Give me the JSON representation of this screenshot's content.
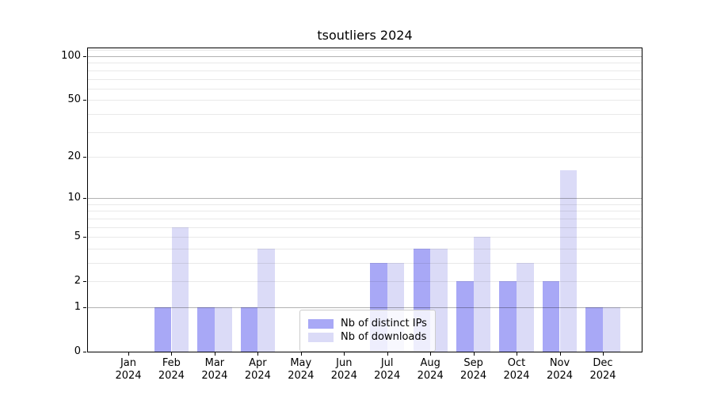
{
  "chart_data": {
    "type": "bar",
    "title": "tsoutliers 2024",
    "categories": [
      "Jan 2024",
      "Feb 2024",
      "Mar 2024",
      "Apr 2024",
      "May 2024",
      "Jun 2024",
      "Jul 2024",
      "Aug 2024",
      "Sep 2024",
      "Oct 2024",
      "Nov 2024",
      "Dec 2024"
    ],
    "series": [
      {
        "name": "Nb of distinct IPs",
        "color": "#a8a8f6",
        "values": [
          0,
          1,
          1,
          1,
          0,
          0,
          3,
          4,
          2,
          2,
          2,
          1
        ]
      },
      {
        "name": "Nb of downloads",
        "color": "#dbdbf7",
        "values": [
          0,
          6,
          1,
          4,
          0,
          0,
          3,
          4,
          5,
          3,
          16,
          1
        ]
      }
    ],
    "xlabel": "",
    "ylabel": "",
    "yscale": "log1p",
    "ylim": [
      0,
      115
    ],
    "yticks": [
      0,
      1,
      2,
      5,
      10,
      20,
      50,
      100
    ],
    "grid": true,
    "grid_major_values": [
      1,
      10,
      100
    ],
    "grid_minor_values": [
      2,
      3,
      4,
      5,
      6,
      7,
      8,
      9,
      20,
      30,
      40,
      50,
      60,
      70,
      80,
      90,
      110
    ],
    "legend_position": "lower center",
    "colors": {
      "grid_major": "rgba(0,0,0,0.30)",
      "grid_minor": "rgba(0,0,0,0.085)",
      "spine": "#000000",
      "background": "#ffffff"
    }
  }
}
